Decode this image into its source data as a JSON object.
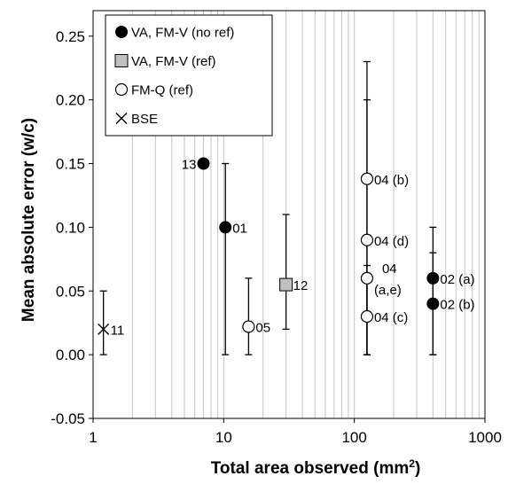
{
  "chart_data": {
    "type": "scatter",
    "xlabel": "Total area observed (mm",
    "xlabel_sup": "2",
    "xlabel_end": ")",
    "ylabel": "Mean absolute error (w/c)",
    "x_scale": "log",
    "xlim": [
      1,
      1000
    ],
    "ylim": [
      -0.05,
      0.27
    ],
    "grid": "vertical log gridlines",
    "x_ticks": [
      1,
      10,
      100,
      1000
    ],
    "x_tick_labels": [
      "1",
      "10",
      "100",
      "1000"
    ],
    "y_ticks": [
      -0.05,
      0,
      0.05,
      0.1,
      0.15,
      0.2,
      0.25
    ],
    "y_tick_labels": [
      "-0.05",
      "0.00",
      "0.05",
      "0.10",
      "0.15",
      "0.20",
      "0.25"
    ],
    "legend_position": "top-left",
    "legend": [
      {
        "label": "VA, FM-V (no ref)",
        "marker": "filled-circle"
      },
      {
        "label": "VA, FM-V (ref)",
        "marker": "gray-square"
      },
      {
        "label": "FM-Q (ref)",
        "marker": "open-circle"
      },
      {
        "label": "BSE",
        "marker": "cross"
      }
    ],
    "points": [
      {
        "label": "13",
        "x": 7,
        "y": 0.15,
        "marker": "filled-circle",
        "side": "left"
      },
      {
        "label": "01",
        "x": 10.3,
        "y": 0.1,
        "err_low": 0,
        "err_high": 0.15,
        "marker": "filled-circle",
        "side": "right"
      },
      {
        "label": "12",
        "x": 30,
        "y": 0.055,
        "err_low": 0.02,
        "err_high": 0.11,
        "marker": "gray-square",
        "side": "right"
      },
      {
        "label": "05",
        "x": 15.5,
        "y": 0.022,
        "err_low": 0,
        "err_high": 0.06,
        "marker": "open-circle",
        "side": "right"
      },
      {
        "label": "11",
        "x": 1.2,
        "y": 0.02,
        "err_low": 0,
        "err_high": 0.05,
        "marker": "cross",
        "side": "right"
      },
      {
        "label": "04 (b)",
        "x": 125,
        "y": 0.138,
        "err_low": 0,
        "err_high": 0.23,
        "marker": "open-circle",
        "side": "right"
      },
      {
        "label": "04 (d)",
        "x": 125,
        "y": 0.09,
        "err_low": 0,
        "err_high": 0.2,
        "marker": "open-circle",
        "side": "right"
      },
      {
        "label": "04",
        "label2": "(a,e)",
        "x": 125,
        "y": 0.06,
        "err_low": 0,
        "err_high": 0.07,
        "marker": "open-circle",
        "side": "right"
      },
      {
        "label": "04 (c)",
        "x": 125,
        "y": 0.03,
        "err_low": 0,
        "err_high": 0.06,
        "marker": "open-circle",
        "side": "right"
      },
      {
        "label": "02 (a)",
        "x": 400,
        "y": 0.06,
        "err_low": 0,
        "err_high": 0.1,
        "marker": "filled-circle",
        "side": "right"
      },
      {
        "label": "02 (b)",
        "x": 400,
        "y": 0.04,
        "err_low": 0,
        "err_high": 0.08,
        "marker": "filled-circle",
        "side": "right"
      }
    ]
  }
}
